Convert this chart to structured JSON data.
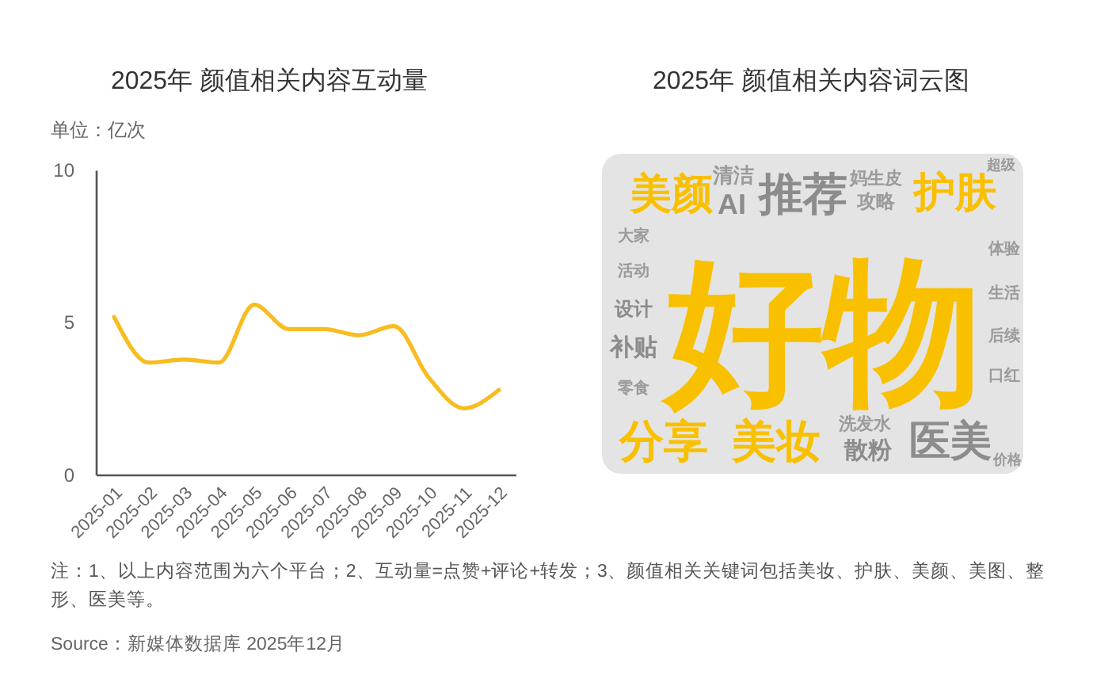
{
  "chart_data": [
    {
      "type": "line",
      "title": "2025年 颜值相关内容互动量",
      "ylabel": "单位：亿次",
      "categories": [
        "2025-01",
        "2025-02",
        "2025-03",
        "2025-04",
        "2025-05",
        "2025-06",
        "2025-07",
        "2025-08",
        "2025-09",
        "2025-10",
        "2025-11",
        "2025-12"
      ],
      "series": [
        {
          "color": "#f7bd20",
          "values": [
            5.2,
            3.7,
            3.8,
            3.7,
            5.6,
            4.8,
            4.8,
            4.6,
            4.9,
            3.2,
            2.2,
            2.8
          ]
        }
      ],
      "ylim": [
        0,
        10
      ],
      "yticks": [
        0,
        5,
        10
      ],
      "annotations": [
        "注：1、以上内容范围为六个平台；2、互动量=点赞+评论+转发；3、颜值相关关键词包括美妆、护肤、美颜、美图、整形、医美等。",
        "Source：新媒体数据库 2025年12月"
      ]
    },
    {
      "type": "other",
      "title": "2025年 颜值相关内容词云图",
      "annotations": [
        "好物",
        "推荐",
        "分享",
        "美妆",
        "美颜",
        "护肤",
        "医美",
        "AI",
        "补贴",
        "设计",
        "散粉",
        "清洁",
        "攻略",
        "妈生皮",
        "洗发水",
        "生活",
        "价格",
        "零食",
        "后续",
        "活动",
        "大家",
        "体验",
        "超级",
        "口红"
      ],
      "colors": [
        "#f9c000",
        "#8c8c8c",
        "#f9c000",
        "#f9c000",
        "#f9c000",
        "#f9c000",
        "#8c8c8c",
        "#8c8c8c",
        "#8c8c8c",
        "#8c8c8c",
        "#8c8c8c",
        "#9b9b9b",
        "#9b9b9b",
        "#9b9b9b",
        "#9b9b9b",
        "#9b9b9b",
        "#9b9b9b",
        "#9b9b9b",
        "#9b9b9b",
        "#9b9b9b",
        "#9b9b9b",
        "#9b9b9b",
        "#9b9b9b",
        "#9b9b9b"
      ]
    }
  ]
}
